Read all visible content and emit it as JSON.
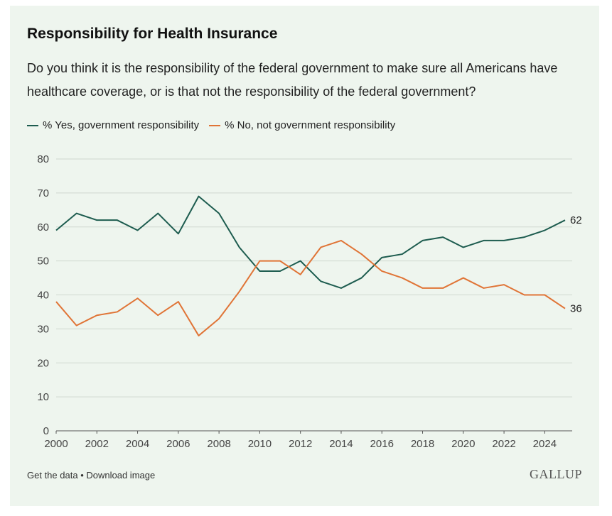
{
  "header": {
    "title": "Responsibility for Health Insurance",
    "subtitle": "Do you think it is the responsibility of the federal government to make sure all Americans have healthcare coverage, or is that not the responsibility of the federal government?"
  },
  "footer": {
    "get_data": "Get the data",
    "separator": "•",
    "download": "Download image",
    "brand": "GALLUP"
  },
  "colors": {
    "yes": "#1d5c4f",
    "no": "#e07436",
    "grid": "#cfd8cf",
    "axis": "#555555"
  },
  "chart_data": {
    "type": "line",
    "title": "Responsibility for Health Insurance",
    "x": [
      2000,
      2001,
      2002,
      2003,
      2004,
      2005,
      2006,
      2007,
      2008,
      2009,
      2010,
      2011,
      2012,
      2013,
      2014,
      2015,
      2016,
      2017,
      2018,
      2019,
      2020,
      2021,
      2022,
      2023,
      2024,
      2025
    ],
    "xticks": [
      "2000",
      "2002",
      "2004",
      "2006",
      "2008",
      "2010",
      "2012",
      "2014",
      "2016",
      "2018",
      "2020",
      "2022",
      "2024"
    ],
    "yticks": [
      "0",
      "10",
      "20",
      "30",
      "40",
      "50",
      "60",
      "70",
      "80"
    ],
    "ylim": [
      0,
      80
    ],
    "xlim": [
      2000,
      2025
    ],
    "grid": true,
    "legend_position": "top-left",
    "series": [
      {
        "name": "% Yes, government responsibility",
        "key": "yes",
        "values": [
          59,
          64,
          62,
          62,
          59,
          64,
          58,
          69,
          64,
          54,
          47,
          47,
          50,
          44,
          42,
          45,
          51,
          52,
          56,
          57,
          54,
          56,
          56,
          57,
          59,
          62
        ],
        "end_label": "62"
      },
      {
        "name": "% No, not government responsibility",
        "key": "no",
        "values": [
          38,
          31,
          34,
          35,
          39,
          34,
          38,
          28,
          33,
          41,
          50,
          50,
          46,
          54,
          56,
          52,
          47,
          45,
          42,
          42,
          45,
          42,
          43,
          40,
          40,
          36
        ],
        "end_label": "36"
      }
    ]
  }
}
